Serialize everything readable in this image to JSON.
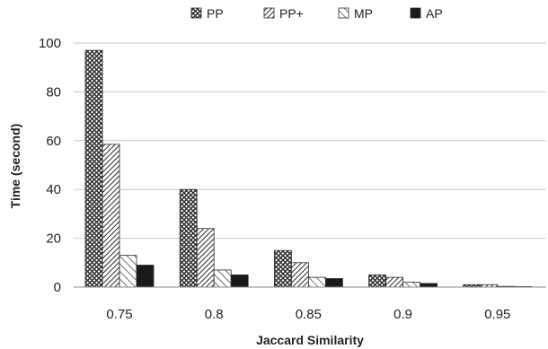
{
  "chart_data": {
    "type": "bar",
    "title": "",
    "xlabel": "Jaccard Similarity",
    "ylabel": "Time (second)",
    "categories": [
      "0.75",
      "0.8",
      "0.85",
      "0.9",
      "0.95"
    ],
    "series": [
      {
        "name": "PP",
        "values": [
          97,
          40,
          15,
          5,
          1
        ]
      },
      {
        "name": "PP+",
        "values": [
          58.5,
          24,
          10,
          4,
          1
        ]
      },
      {
        "name": "MP",
        "values": [
          13,
          7,
          4,
          2,
          0.3
        ]
      },
      {
        "name": "AP",
        "values": [
          9,
          5,
          3.5,
          1.5,
          0.2
        ]
      }
    ],
    "ylim": [
      0,
      100
    ],
    "yticks": [
      "0",
      "20",
      "40",
      "60",
      "80",
      "100"
    ],
    "grid": true,
    "legend_position": "top-center"
  },
  "colors": {
    "PP": "#2a2a2a",
    "PP+": "#2a2a2a",
    "MP": "#2a2a2a",
    "AP": "#1a1a1a",
    "grid": "#c8c8c8",
    "axis": "#888888"
  },
  "patterns": {
    "PP": "crosshatch",
    "PP+": "diagonal-dense",
    "MP": "diagonal-sparse",
    "AP": "solid"
  }
}
